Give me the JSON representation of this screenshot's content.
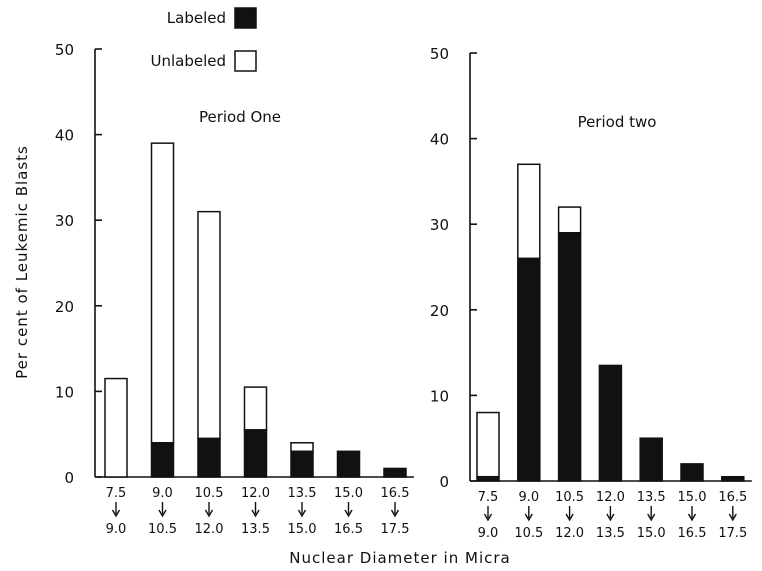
{
  "legend": {
    "labeled": "Labeled",
    "unlabeled": "Unlabeled",
    "labeled_color": "#111111",
    "unlabeled_color": "#ffffff"
  },
  "ylabel": "Per cent of Leukemic Blasts",
  "xlabel": "Nuclear Diameter in Micra",
  "chart_data": [
    {
      "type": "bar",
      "stacked": true,
      "title": "Period One",
      "ylim": [
        0,
        50
      ],
      "yticks": [
        "0",
        "10",
        "20",
        "30",
        "40",
        "50"
      ],
      "categories": [
        {
          "from": "7.5",
          "to": "9.0"
        },
        {
          "from": "9.0",
          "to": "10.5"
        },
        {
          "from": "10.5",
          "to": "12.0"
        },
        {
          "from": "12.0",
          "to": "13.5"
        },
        {
          "from": "13.5",
          "to": "15.0"
        },
        {
          "from": "15.0",
          "to": "16.5"
        },
        {
          "from": "16.5",
          "to": "17.5"
        }
      ],
      "series": [
        {
          "name": "Labeled",
          "values": [
            0,
            4,
            4.5,
            5.5,
            3,
            3,
            1
          ]
        },
        {
          "name": "Unlabeled",
          "values": [
            11.5,
            35,
            26.5,
            5,
            1,
            0,
            0
          ]
        }
      ]
    },
    {
      "type": "bar",
      "stacked": true,
      "title": "Period two",
      "ylim": [
        0,
        50
      ],
      "yticks": [
        "0",
        "10",
        "20",
        "30",
        "40",
        "50"
      ],
      "categories": [
        {
          "from": "7.5",
          "to": "9.0"
        },
        {
          "from": "9.0",
          "to": "10.5"
        },
        {
          "from": "10.5",
          "to": "12.0"
        },
        {
          "from": "12.0",
          "to": "13.5"
        },
        {
          "from": "13.5",
          "to": "15.0"
        },
        {
          "from": "15.0",
          "to": "16.5"
        },
        {
          "from": "16.5",
          "to": "17.5"
        }
      ],
      "series": [
        {
          "name": "Labeled",
          "values": [
            0.5,
            26,
            29,
            13.5,
            5,
            2,
            0.5
          ]
        },
        {
          "name": "Unlabeled",
          "values": [
            7.5,
            11,
            3,
            0,
            0,
            0,
            0
          ]
        }
      ]
    }
  ]
}
